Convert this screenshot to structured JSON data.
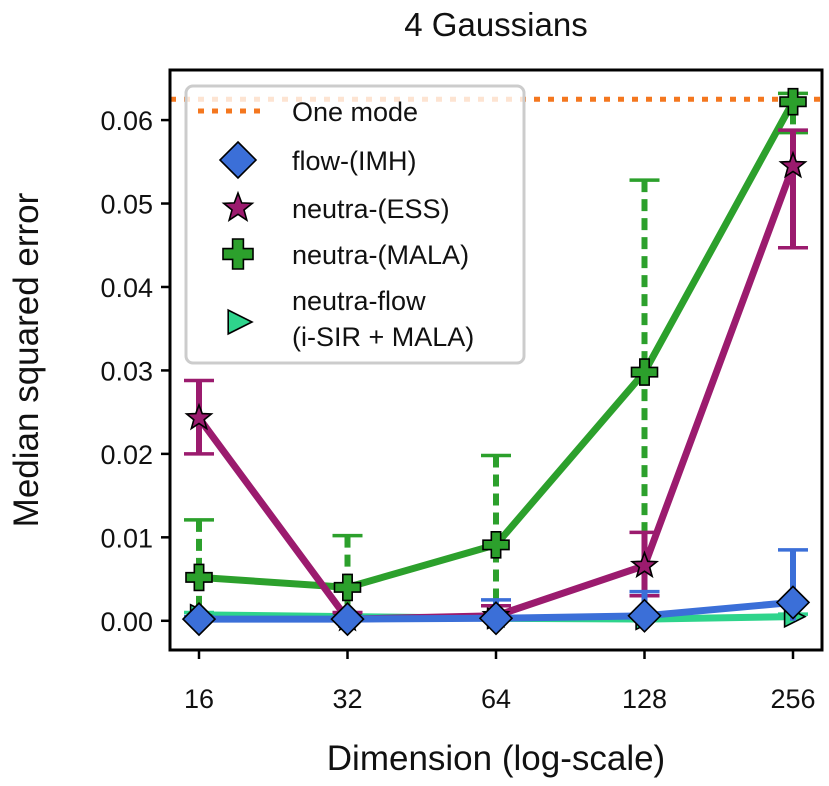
{
  "chart_data": {
    "type": "line",
    "title": "4 Gaussians",
    "xlabel": "Dimension (log-scale)",
    "ylabel": "Median squared error",
    "x_scale": "log2",
    "categories": [
      "16",
      "32",
      "64",
      "128",
      "256"
    ],
    "x": [
      16,
      32,
      64,
      128,
      256
    ],
    "ylim": [
      -0.0035,
      0.066
    ],
    "yticks": [
      0.0,
      0.01,
      0.02,
      0.03,
      0.04,
      0.05,
      0.06
    ],
    "ytick_labels": [
      "0.00",
      "0.01",
      "0.02",
      "0.03",
      "0.04",
      "0.05",
      "0.06"
    ],
    "grid": false,
    "legend_position": "top-left",
    "reference_line": {
      "name": "One mode",
      "value": 0.0625,
      "color": "#f4771f",
      "style": "dotted"
    },
    "series": [
      {
        "name": "flow-(IMH)",
        "label_lines": [
          "flow-(IMH)"
        ],
        "marker": "diamond",
        "color": "#3b6fd8",
        "values": [
          0.0002,
          0.0002,
          0.0003,
          0.0006,
          0.0022
        ],
        "error_low": [
          0.0,
          0.0,
          0.0,
          0.0,
          0.0
        ],
        "error_high": [
          0.0005,
          0.0005,
          0.0025,
          0.0035,
          0.0085
        ],
        "errorbar_style": "solid"
      },
      {
        "name": "neutra-(ESS)",
        "label_lines": [
          "neutra-(ESS)"
        ],
        "marker": "star",
        "color": "#9b1b6e",
        "values": [
          0.0243,
          0.0002,
          0.0006,
          0.0066,
          0.0545
        ],
        "error_low": [
          0.02,
          0.0,
          0.0,
          0.003,
          0.0447
        ],
        "error_high": [
          0.0288,
          0.001,
          0.0018,
          0.0106,
          0.0588
        ],
        "errorbar_style": "solid"
      },
      {
        "name": "neutra-(MALA)",
        "label_lines": [
          "neutra-(MALA)"
        ],
        "marker": "plus",
        "color": "#2ca02c",
        "values": [
          0.0052,
          0.004,
          0.0091,
          0.0298,
          0.0622
        ],
        "error_low": [
          0.0,
          0.0,
          0.0,
          0.0,
          0.0585
        ],
        "error_high": [
          0.0121,
          0.0102,
          0.0198,
          0.0528,
          0.0632
        ],
        "errorbar_style": "dashed"
      },
      {
        "name": "neutra-flow (i-SIR + MALA)",
        "label_lines": [
          "neutra-flow",
          "(i-SIR + MALA)"
        ],
        "marker": "triangle-right",
        "color": "#2ed48c",
        "values": [
          0.0007,
          0.0005,
          0.0003,
          0.0002,
          0.0005
        ],
        "error_low": [
          0.0,
          0.0,
          0.0,
          0.0,
          0.0
        ],
        "error_high": [
          0.001,
          0.0008,
          0.0006,
          0.0005,
          0.0008
        ],
        "errorbar_style": "solid"
      }
    ]
  }
}
